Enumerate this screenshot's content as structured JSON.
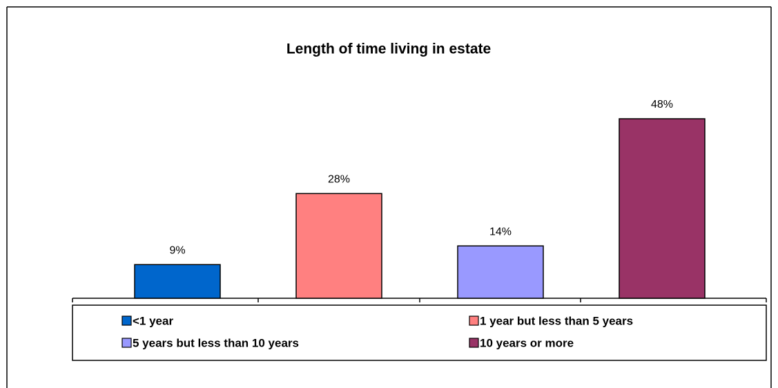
{
  "chart_data": {
    "type": "bar",
    "title": "Length of time living in estate",
    "categories": [
      "<1 year",
      "1 year but less than 5 years",
      "5 years but less than 10 years",
      "10 years or more"
    ],
    "values": [
      9,
      28,
      14,
      48
    ],
    "value_labels": [
      "9%",
      "28%",
      "14%",
      "48%"
    ],
    "colors": [
      "#0066cc",
      "#ff8080",
      "#9999ff",
      "#993366"
    ],
    "legend": "bottom"
  }
}
